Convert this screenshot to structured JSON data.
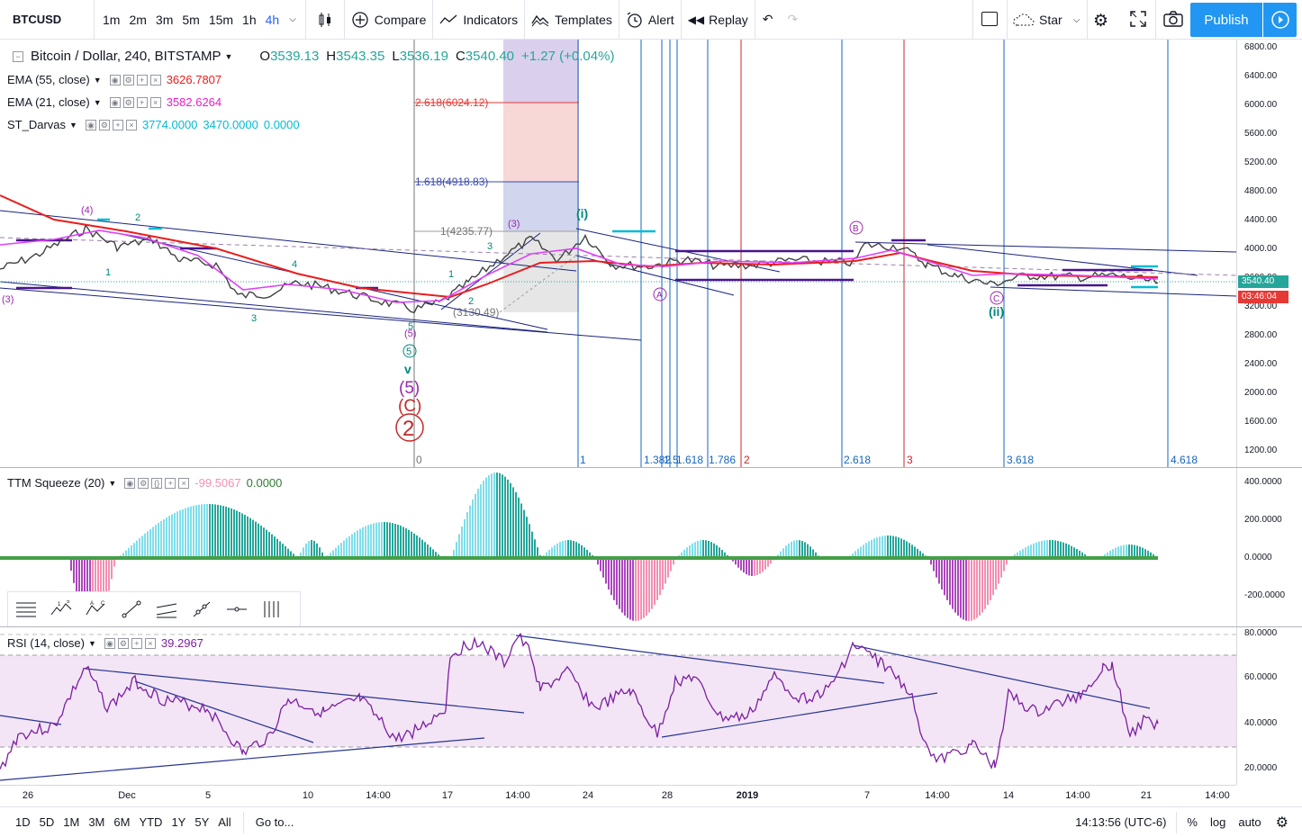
{
  "toolbar": {
    "symbol": "BTCUSD",
    "timeframes": [
      "1m",
      "2m",
      "3m",
      "5m",
      "15m",
      "1h",
      "4h"
    ],
    "active_timeframe": "4h",
    "compare": "Compare",
    "indicators": "Indicators",
    "templates": "Templates",
    "alert": "Alert",
    "replay": "Replay",
    "star": "Star",
    "publish": "Publish"
  },
  "main_legend": {
    "title": "Bitcoin / Dollar, 240, BITSTAMP",
    "o_label": "O",
    "o": "3539.13",
    "h_label": "H",
    "h": "3543.35",
    "l_label": "L",
    "l": "3536.19",
    "c_label": "C",
    "c": "3540.40",
    "change": "+1.27 (+0.04%)"
  },
  "indicators": {
    "ema55": {
      "label": "EMA (55, close)",
      "value": "3626.7807",
      "color": "#e91e1e"
    },
    "ema21": {
      "label": "EMA (21, close)",
      "value": "3582.6264",
      "color": "#e91ec8"
    },
    "darvas": {
      "label": "ST_Darvas",
      "v1": "3774.0000",
      "v2": "3470.0000",
      "v3": "0.0000",
      "color": "#00bcd4"
    },
    "ttm": {
      "label": "TTM Squeeze (20)",
      "v1": "-99.5067",
      "v2": "0.0000"
    },
    "rsi": {
      "label": "RSI (14, close)",
      "value": "39.2967"
    }
  },
  "price_axis": [
    "6800.00",
    "6400.00",
    "6000.00",
    "5600.00",
    "5200.00",
    "4800.00",
    "4400.00",
    "4000.00",
    "3600.00",
    "3200.00",
    "2800.00",
    "2400.00",
    "2000.00",
    "1600.00",
    "1200.00"
  ],
  "current_price": "3540.40",
  "countdown": "03:46:04",
  "ttm_axis": [
    "400.0000",
    "200.0000",
    "0.0000",
    "-200.0000"
  ],
  "rsi_axis": [
    "80.0000",
    "60.0000",
    "40.0000",
    "20.0000"
  ],
  "time_axis": [
    "26",
    "Dec",
    "5",
    "10",
    "14:00",
    "17",
    "14:00",
    "24",
    "28",
    "2019",
    "7",
    "14:00",
    "14",
    "14:00",
    "21",
    "14:00"
  ],
  "fib_levels": {
    "l2618": "2.618(6024.12)",
    "l1618": "1.618(4918.83)",
    "l1": "1(4235.77)",
    "l0": "(3130.49)"
  },
  "fib_time": [
    "0",
    "1",
    "1.382",
    "1.5",
    "1.618",
    "1.786",
    "2",
    "2.618",
    "3",
    "3.618",
    "4.618"
  ],
  "waves": {
    "w4": "(4)",
    "w2": "2",
    "w1": "1",
    "w3": "3",
    "w4b": "4",
    "w5": "5",
    "v": "v",
    "p5": "(5)",
    "c": "(C)",
    "big2": "2",
    "i": "(i)",
    "ii": "(ii)",
    "A": "A",
    "B": "B",
    "C": "C",
    "w3l": "(3)"
  },
  "bottom": {
    "ranges": [
      "1D",
      "5D",
      "1M",
      "3M",
      "6M",
      "YTD",
      "1Y",
      "5Y",
      "All"
    ],
    "goto": "Go to...",
    "clock": "14:13:56 (UTC-6)",
    "percent": "%",
    "log": "log",
    "auto": "auto"
  }
}
